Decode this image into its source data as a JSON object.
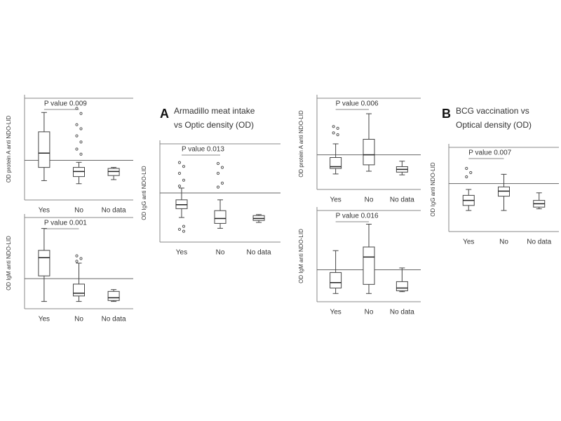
{
  "chart_data": [
    {
      "type": "box",
      "ylabel": "OD protein A anti NDO-LID",
      "annotation": "P value 0.009",
      "categories": [
        "Yes",
        "No",
        "No data"
      ],
      "ylim": [
        0,
        1
      ],
      "cutoff": 0.39,
      "boxes": [
        {
          "min": 0.19,
          "q1": 0.32,
          "median": 0.46,
          "q3": 0.67,
          "max": 0.86,
          "outliers": []
        },
        {
          "min": 0.16,
          "q1": 0.23,
          "median": 0.28,
          "q3": 0.32,
          "max": 0.37,
          "outliers": [
            0.9,
            0.85,
            0.74,
            0.7,
            0.63,
            0.57,
            0.5,
            0.45
          ]
        },
        {
          "min": 0.2,
          "q1": 0.24,
          "median": 0.28,
          "q3": 0.31,
          "max": 0.32,
          "outliers": []
        }
      ]
    },
    {
      "type": "box",
      "ylabel": "OD IgM anti NDO-LID",
      "annotation": "P value 0.001",
      "categories": [
        "Yes",
        "No",
        "No data"
      ],
      "ylim": [
        0,
        1
      ],
      "cutoff": 0.33,
      "boxes": [
        {
          "min": 0.08,
          "q1": 0.36,
          "median": 0.56,
          "q3": 0.64,
          "max": 0.88,
          "outliers": []
        },
        {
          "min": 0.08,
          "q1": 0.14,
          "median": 0.17,
          "q3": 0.27,
          "max": 0.5,
          "outliers": [
            0.58,
            0.55,
            0.52
          ]
        },
        {
          "min": 0.08,
          "q1": 0.09,
          "median": 0.12,
          "q3": 0.19,
          "max": 0.21,
          "outliers": []
        }
      ]
    },
    {
      "type": "box",
      "title": "A",
      "subtitle": [
        "Armadillo meat intake",
        "vs Optic density (OD)"
      ],
      "ylabel": "OD IgG anti NDO-LID",
      "annotation": "P value 0.013",
      "categories": [
        "Yes",
        "No",
        "No data"
      ],
      "ylim": [
        0,
        1
      ],
      "cutoff": 0.5,
      "boxes": [
        {
          "min": 0.25,
          "q1": 0.34,
          "median": 0.38,
          "q3": 0.43,
          "max": 0.55,
          "outliers": [
            0.81,
            0.77,
            0.7,
            0.63,
            0.57,
            0.16,
            0.13,
            0.11
          ]
        },
        {
          "min": 0.14,
          "q1": 0.19,
          "median": 0.24,
          "q3": 0.32,
          "max": 0.43,
          "outliers": [
            0.8,
            0.76,
            0.7,
            0.6,
            0.56
          ]
        },
        {
          "min": 0.2,
          "q1": 0.22,
          "median": 0.24,
          "q3": 0.27,
          "max": 0.28,
          "outliers": []
        }
      ]
    },
    {
      "type": "box",
      "ylabel": "OD protein A anti NDO-LID",
      "annotation": "P value 0.006",
      "categories": [
        "Yes",
        "No",
        "No data"
      ],
      "ylim": [
        0,
        1
      ],
      "cutoff": 0.38,
      "boxes": [
        {
          "min": 0.17,
          "q1": 0.23,
          "median": 0.25,
          "q3": 0.35,
          "max": 0.5,
          "outliers": [
            0.69,
            0.67,
            0.62,
            0.6
          ]
        },
        {
          "min": 0.2,
          "q1": 0.27,
          "median": 0.38,
          "q3": 0.55,
          "max": 0.83,
          "outliers": []
        },
        {
          "min": 0.16,
          "q1": 0.19,
          "median": 0.22,
          "q3": 0.25,
          "max": 0.31,
          "outliers": []
        }
      ]
    },
    {
      "type": "box",
      "ylabel": "OD IgM anti NDO-LID",
      "annotation": "P value 0.016",
      "categories": [
        "Yes",
        "No",
        "No data"
      ],
      "ylim": [
        0,
        1
      ],
      "cutoff": 0.35,
      "boxes": [
        {
          "min": 0.09,
          "q1": 0.15,
          "median": 0.21,
          "q3": 0.32,
          "max": 0.56,
          "outliers": []
        },
        {
          "min": 0.09,
          "q1": 0.19,
          "median": 0.49,
          "q3": 0.6,
          "max": 0.85,
          "outliers": []
        },
        {
          "min": 0.11,
          "q1": 0.12,
          "median": 0.15,
          "q3": 0.22,
          "max": 0.37,
          "outliers": []
        }
      ]
    },
    {
      "type": "box",
      "title": "B",
      "subtitle": [
        "BCG vaccination vs",
        "Optical density (OD)"
      ],
      "ylabel": "OD IgG anti NDO-LID",
      "annotation": "P value 0.007",
      "categories": [
        "Yes",
        "No",
        "No data"
      ],
      "ylim": [
        0,
        1
      ],
      "cutoff": 0.57,
      "boxes": [
        {
          "min": 0.25,
          "q1": 0.31,
          "median": 0.37,
          "q3": 0.43,
          "max": 0.5,
          "outliers": [
            0.75,
            0.7,
            0.65
          ]
        },
        {
          "min": 0.25,
          "q1": 0.42,
          "median": 0.48,
          "q3": 0.53,
          "max": 0.68,
          "outliers": []
        },
        {
          "min": 0.27,
          "q1": 0.29,
          "median": 0.33,
          "q3": 0.37,
          "max": 0.46,
          "outliers": []
        }
      ]
    }
  ]
}
